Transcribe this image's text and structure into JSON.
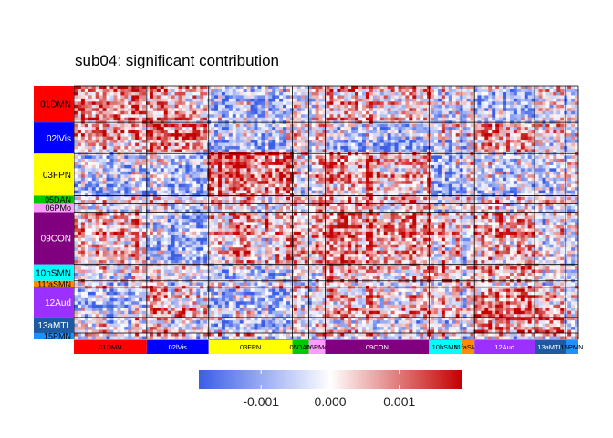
{
  "chart_data": {
    "type": "heatmap",
    "title": "sub04: significant contribution",
    "rows": [
      {
        "label": "01DMN",
        "color": "#ff0000",
        "size": 40
      },
      {
        "label": "02lVis",
        "color": "#0000ff",
        "size": 34
      },
      {
        "label": "03FPN",
        "color": "#ffff00",
        "size": 46
      },
      {
        "label": "05DAN",
        "color": "#00c800",
        "size": 9
      },
      {
        "label": "06PMo",
        "color": "#ff9cff",
        "size": 9
      },
      {
        "label": "09CON",
        "color": "#800080",
        "size": 57
      },
      {
        "label": "10hSMN",
        "color": "#00ffff",
        "size": 18
      },
      {
        "label": "11faSMN",
        "color": "#ff8c00",
        "size": 7
      },
      {
        "label": "12Aud",
        "color": "#9b30ff",
        "size": 33
      },
      {
        "label": "13aMTL",
        "color": "#1e5aa0",
        "size": 17
      },
      {
        "label": "15PMN",
        "color": "#1e90ff",
        "size": 7
      }
    ],
    "columns": [
      {
        "label": "01DMN",
        "color": "#ff0000",
        "size": 40
      },
      {
        "label": "02lVis",
        "color": "#0000ff",
        "size": 34
      },
      {
        "label": "03FPN",
        "color": "#ffff00",
        "size": 46
      },
      {
        "label": "05DAN",
        "color": "#00c800",
        "size": 9
      },
      {
        "label": "06PMo",
        "color": "#ff9cff",
        "size": 9
      },
      {
        "label": "09CON",
        "color": "#800080",
        "size": 57
      },
      {
        "label": "10hSMN",
        "color": "#00ffff",
        "size": 18
      },
      {
        "label": "11faSMN",
        "color": "#ff8c00",
        "size": 7
      },
      {
        "label": "12Aud",
        "color": "#9b30ff",
        "size": 33
      },
      {
        "label": "13aMTL",
        "color": "#1e5aa0",
        "size": 17
      },
      {
        "label": "15PMN",
        "color": "#1e90ff",
        "size": 7
      }
    ],
    "color_scale": {
      "low": "#3a5ee6",
      "mid": "#ffffff",
      "high": "#c40000",
      "range": [
        -0.0019,
        0.0019
      ],
      "ticks": [
        {
          "value": -0.001,
          "label": "-0.001"
        },
        {
          "value": 0.0,
          "label": "0.000"
        },
        {
          "value": 0.001,
          "label": "0.001"
        }
      ]
    },
    "legend_position": "bottom",
    "grid": false
  }
}
